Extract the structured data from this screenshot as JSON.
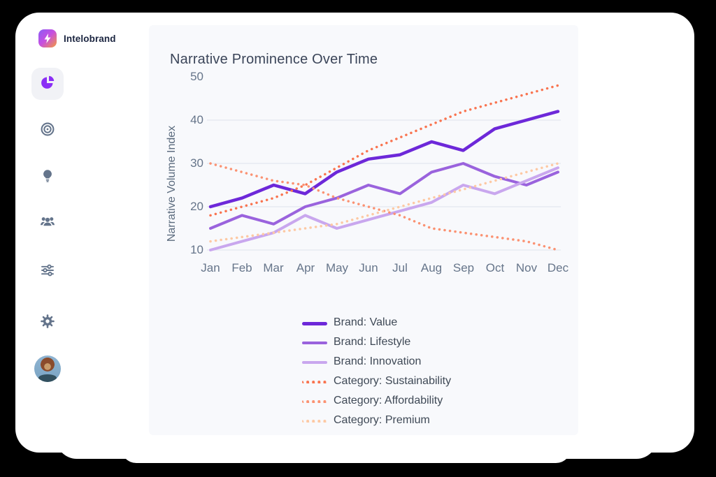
{
  "app": {
    "brand": "Intelobrand"
  },
  "sidebar": {
    "items": [
      {
        "id": "analytics",
        "icon": "pie-chart-icon",
        "active": true
      },
      {
        "id": "targets",
        "icon": "target-icon",
        "active": false
      },
      {
        "id": "insights",
        "icon": "lightbulb-icon",
        "active": false
      },
      {
        "id": "audience",
        "icon": "users-icon",
        "active": false
      },
      {
        "id": "filters",
        "icon": "sliders-icon",
        "active": false
      },
      {
        "id": "settings",
        "icon": "gear-icon",
        "active": false
      }
    ]
  },
  "colors": {
    "accent_purple": "#8b2ff5",
    "icon_gray": "#64748b",
    "panel_background": "#f8f9fc",
    "gridline": "#e3e7ee"
  },
  "chart_data": {
    "type": "line",
    "title": "Narrative Prominence Over Time",
    "xlabel": "",
    "ylabel": "Narrative Volume Index",
    "categories": [
      "Jan",
      "Feb",
      "Mar",
      "Apr",
      "May",
      "Jun",
      "Jul",
      "Aug",
      "Sep",
      "Oct",
      "Nov",
      "Dec"
    ],
    "y_ticks": [
      10,
      20,
      30,
      40,
      50
    ],
    "ylim": [
      10,
      50
    ],
    "grid": "horizontal",
    "legend_position": "bottom",
    "series": [
      {
        "name": "Brand: Value",
        "style": "solid",
        "color": "#6d28d9",
        "width": 4.5,
        "values": [
          20,
          22,
          25,
          23,
          28,
          31,
          32,
          35,
          33,
          38,
          40,
          42
        ]
      },
      {
        "name": "Brand: Lifestyle",
        "style": "solid",
        "color": "#9a63dd",
        "width": 4,
        "values": [
          15,
          18,
          16,
          20,
          22,
          25,
          23,
          28,
          30,
          27,
          25,
          28
        ]
      },
      {
        "name": "Brand: Innovation",
        "style": "solid",
        "color": "#c9a7ee",
        "width": 4,
        "values": [
          10,
          12,
          14,
          18,
          15,
          17,
          19,
          21,
          25,
          23,
          26,
          29
        ]
      },
      {
        "name": "Category: Sustainability",
        "style": "dotted",
        "color": "#f97450",
        "width": 3.5,
        "values": [
          18,
          20,
          22,
          25,
          29,
          33,
          36,
          39,
          42,
          44,
          46,
          48
        ]
      },
      {
        "name": "Category: Affordability",
        "style": "dotted",
        "color": "#fb9272",
        "width": 3.5,
        "values": [
          30,
          28,
          26,
          25,
          22,
          20,
          18,
          15,
          14,
          13,
          12,
          10
        ]
      },
      {
        "name": "Category: Premium",
        "style": "dotted",
        "color": "#fdc9a4",
        "width": 3.5,
        "values": [
          12,
          13,
          14,
          15,
          16,
          18,
          20,
          22,
          24,
          26,
          28,
          30
        ]
      }
    ]
  }
}
